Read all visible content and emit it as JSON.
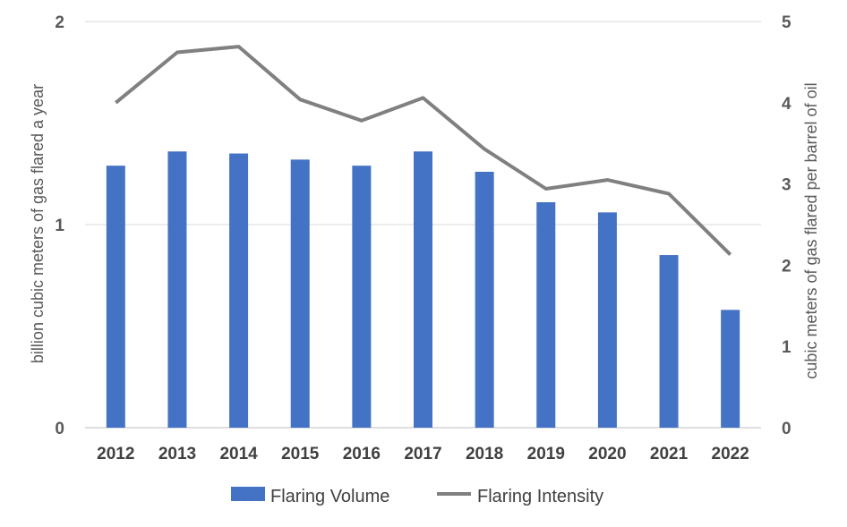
{
  "chart_data": {
    "type": "bar",
    "categories": [
      "2012",
      "2013",
      "2014",
      "2015",
      "2016",
      "2017",
      "2018",
      "2019",
      "2020",
      "2021",
      "2022"
    ],
    "series": [
      {
        "name": "Flaring Volume",
        "type": "bar",
        "axis": "left",
        "color": "#4472C4",
        "values": [
          1.29,
          1.36,
          1.35,
          1.32,
          1.29,
          1.36,
          1.26,
          1.11,
          1.06,
          0.85,
          0.58
        ]
      },
      {
        "name": "Flaring Intensity",
        "type": "line",
        "axis": "right",
        "color": "#808080",
        "values": [
          4.0,
          4.62,
          4.69,
          4.04,
          3.78,
          4.06,
          3.43,
          2.94,
          3.05,
          2.88,
          2.13
        ]
      }
    ],
    "ylabel": "billion cubic meters of gas flared a year",
    "y2label": "cubic meters of gas flared per barrel of oil",
    "ylim": [
      0,
      2
    ],
    "y2lim": [
      0,
      5
    ],
    "yticks": [
      "0",
      "1",
      "2"
    ],
    "y2ticks": [
      "0",
      "1",
      "2",
      "3",
      "4",
      "5"
    ],
    "grid": true,
    "legend_position": "bottom"
  }
}
